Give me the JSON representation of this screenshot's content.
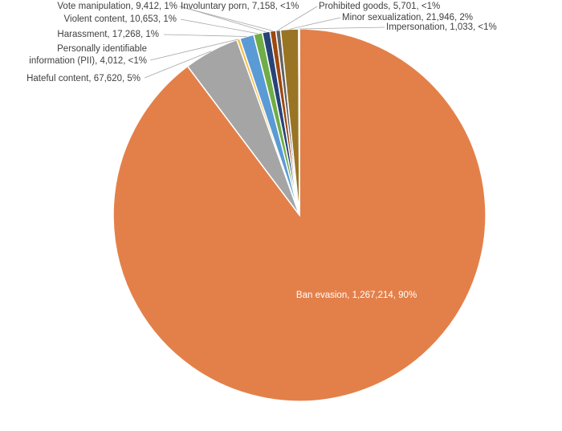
{
  "chart_data": {
    "type": "pie",
    "title": "",
    "start_angle_deg": 0,
    "direction": "clockwise",
    "slices": [
      {
        "label": "Ban evasion",
        "value_text": "1,267,214",
        "pct_text": "90%",
        "value": 1267214,
        "color": "#E3804A"
      },
      {
        "label": "Hateful content",
        "value_text": "67,620",
        "pct_text": "5%",
        "value": 67620,
        "color": "#A5A5A5"
      },
      {
        "label": "Personally identifiable information (PII)",
        "value_text": "4,012",
        "pct_text": "<1%",
        "value": 4012,
        "color": "#F2C14B"
      },
      {
        "label": "Harassment",
        "value_text": "17,268",
        "pct_text": "1%",
        "value": 17268,
        "color": "#5B9BD5"
      },
      {
        "label": "Violent content",
        "value_text": "10,653",
        "pct_text": "1%",
        "value": 10653,
        "color": "#70AD47"
      },
      {
        "label": "Vote manipulation",
        "value_text": "9,412",
        "pct_text": "1%",
        "value": 9412,
        "color": "#264478"
      },
      {
        "label": "Involuntary porn",
        "value_text": "7,158",
        "pct_text": "<1%",
        "value": 7158,
        "color": "#9E480E"
      },
      {
        "label": "Prohibited goods",
        "value_text": "5,701",
        "pct_text": "<1%",
        "value": 5701,
        "color": "#636363"
      },
      {
        "label": "Minor sexualization",
        "value_text": "21,946",
        "pct_text": "2%",
        "value": 21946,
        "color": "#9A7425"
      },
      {
        "label": "Impersonation",
        "value_text": "1,033",
        "pct_text": "<1%",
        "value": 1033,
        "color": "#4472C4"
      }
    ]
  }
}
